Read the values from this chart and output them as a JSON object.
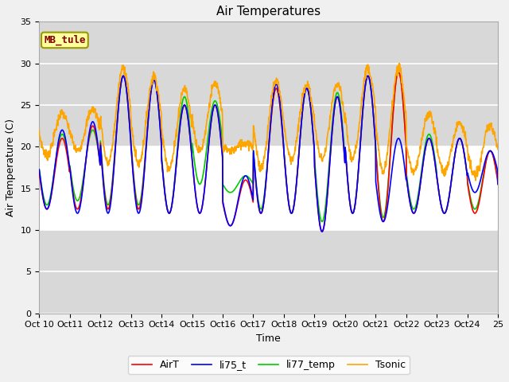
{
  "title": "Air Temperatures",
  "ylabel": "Air Temperature (C)",
  "xlabel": "Time",
  "ylim": [
    0,
    35
  ],
  "xlim": [
    0,
    360
  ],
  "xtick_positions": [
    0,
    24,
    48,
    72,
    96,
    120,
    144,
    168,
    192,
    216,
    240,
    264,
    288,
    312,
    336,
    360
  ],
  "xtick_labels": [
    "Oct 10",
    "Oct 11",
    "Oct 12",
    "Oct 13",
    "Oct 14",
    "Oct 15",
    "Oct 16",
    "Oct 17",
    "Oct 18",
    "Oct 19",
    "Oct 20",
    "Oct 21",
    "Oct 22",
    "Oct 23",
    "Oct 24",
    "Oct 25"
  ],
  "ytick_positions": [
    0,
    5,
    10,
    15,
    20,
    25,
    30,
    35
  ],
  "shade_band_low": 10,
  "shade_band_high": 20,
  "label_box_text": "MB_tule",
  "label_box_bg": "#ffffa0",
  "label_box_text_color": "#880000",
  "plot_bg_color": "#d8d8d8",
  "fig_bg_color": "#f0f0f0",
  "legend_entries": [
    "AirT",
    "li75_t",
    "li77_temp",
    "Tsonic"
  ],
  "line_colors": [
    "#ff0000",
    "#0000ff",
    "#00cc00",
    "#ffa500"
  ],
  "title_fontsize": 11,
  "axis_label_fontsize": 9,
  "tick_fontsize": 8,
  "line_width": 1.2
}
